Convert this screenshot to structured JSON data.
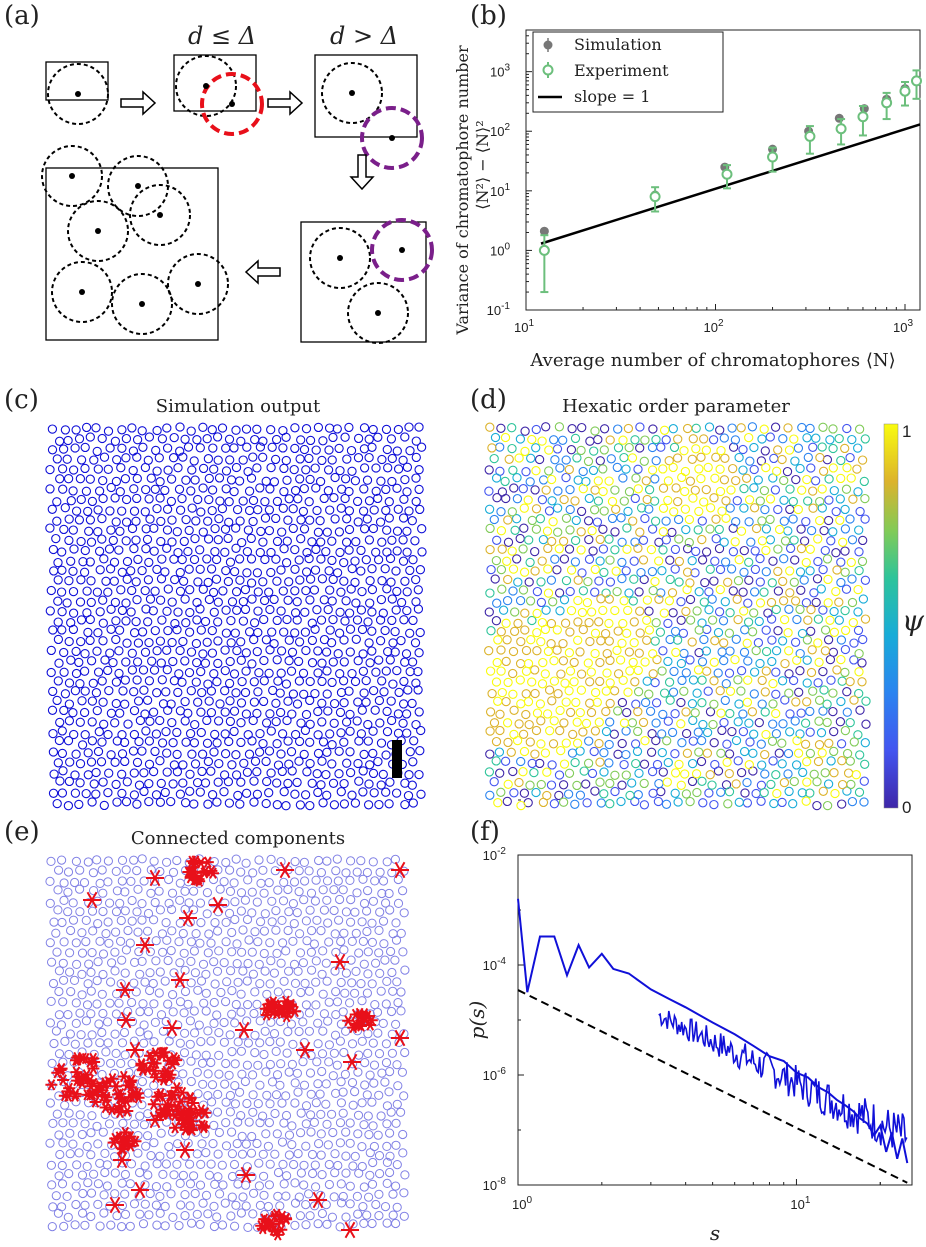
{
  "panels": {
    "a": {
      "label": "(a)",
      "cond_le": "d ≤ Δ",
      "cond_gt": "d > Δ"
    },
    "b": {
      "label": "(b)"
    },
    "c": {
      "label": "(c)",
      "title": "Simulation output"
    },
    "d": {
      "label": "(d)",
      "title": "Hexatic order parameter",
      "colorbar": {
        "max": "1",
        "min": "0",
        "symbol": "ψ"
      }
    },
    "e": {
      "label": "(e)",
      "title": "Connected components"
    },
    "f": {
      "label": "(f)"
    }
  },
  "colors": {
    "simulation": "#777777",
    "experiment": "#6cbf7c",
    "line": "#000000",
    "blue": "#1010d8",
    "red": "#e8101a",
    "purple": "#7a1f8a"
  },
  "chart_data": [
    {
      "id": "b",
      "type": "scatter",
      "xscale": "log",
      "yscale": "log",
      "xlim": [
        10,
        1200
      ],
      "ylim": [
        0.1,
        5000
      ],
      "xlabel": "Average number of chromatophores ⟨N⟩",
      "ylabel_line1": "Variance of chromatophore number",
      "ylabel_line2": "⟨N²⟩ − ⟨N⟩²",
      "xticks": [
        "10",
        "10",
        "10"
      ],
      "xtick_exps": [
        "1",
        "2",
        "3"
      ],
      "xtick_vals": [
        10,
        100,
        1000
      ],
      "yticks": [
        "10",
        "10",
        "10",
        "10",
        "10"
      ],
      "ytick_exps": [
        "-1",
        "0",
        "1",
        "2",
        "3"
      ],
      "ytick_vals": [
        0.1,
        1,
        10,
        100,
        1000
      ],
      "legend": [
        "Simulation",
        "Experiment",
        "slope = 1"
      ],
      "series": [
        {
          "name": "Simulation",
          "x": [
            12.5,
            48,
            112,
            200,
            310,
            450,
            610,
            800,
            1000,
            1150
          ],
          "y": [
            2.1,
            8.5,
            25,
            50,
            100,
            165,
            240,
            345,
            520,
            690
          ],
          "err": [
            0.15,
            0.1,
            0.1,
            0.1,
            0.08,
            0.08,
            0.08,
            0.08,
            0.08,
            0.08
          ]
        },
        {
          "name": "Experiment",
          "x": [
            12.5,
            48,
            115,
            200,
            315,
            460,
            600,
            800,
            1000,
            1150
          ],
          "y": [
            1.0,
            8.0,
            19,
            37,
            82,
            110,
            175,
            300,
            470,
            700
          ],
          "err": [
            0.8,
            3.5,
            8,
            16,
            40,
            50,
            90,
            140,
            200,
            350
          ]
        },
        {
          "name": "slope = 1",
          "x": [
            12,
            1200
          ],
          "y": [
            1.3,
            130
          ]
        }
      ]
    },
    {
      "id": "f",
      "type": "line",
      "xscale": "log",
      "yscale": "log",
      "xlim": [
        1,
        26
      ],
      "ylim": [
        1e-08,
        0.01
      ],
      "xlabel": "s",
      "ylabel": "p(s)",
      "xticks": [
        "10",
        "10"
      ],
      "xtick_exps": [
        "0",
        "1"
      ],
      "xtick_vals": [
        1,
        10
      ],
      "yticks": [
        "10",
        "10",
        "10",
        "10"
      ],
      "ytick_exps": [
        "-8",
        "-6",
        "-4",
        "-2"
      ],
      "ytick_vals": [
        1e-08,
        1e-06,
        0.0001,
        0.01
      ],
      "series": [
        {
          "name": "p(s)",
          "x": [
            1.0,
            1.08,
            1.2,
            1.35,
            1.5,
            1.65,
            1.8,
            2.0,
            2.2,
            2.5,
            3,
            3.5,
            4,
            5,
            6,
            7,
            8,
            9,
            10,
            11,
            12,
            13,
            14,
            15,
            16,
            17,
            18,
            19,
            20,
            21,
            22,
            23,
            24,
            25
          ],
          "y": [
            0.0016,
            3.2e-05,
            0.00033,
            0.00033,
            6.5e-05,
            0.00023,
            9e-05,
            0.00016,
            8.5e-05,
            7e-05,
            3.6e-05,
            2.4e-05,
            1.7e-05,
            9e-06,
            5.5e-06,
            3.4e-06,
            2.2e-06,
            1.8e-06,
            1.1e-06,
            9e-07,
            6e-07,
            4.8e-07,
            3.5e-07,
            2.8e-07,
            2.2e-07,
            1.6e-07,
            1.3e-07,
            8e-08,
            1.2e-07,
            4e-08,
            9e-08,
            3e-08,
            7e-08,
            2.5e-08
          ]
        },
        {
          "name": "power law",
          "x": [
            1,
            25
          ],
          "y": [
            3.5e-05,
            1.1e-08
          ]
        }
      ]
    }
  ]
}
